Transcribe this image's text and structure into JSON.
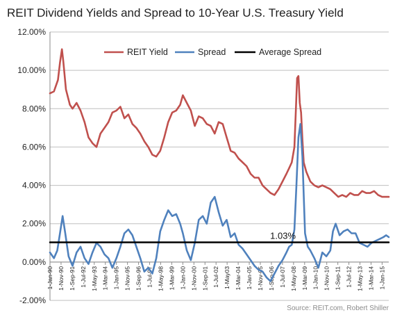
{
  "chart_data": {
    "type": "line",
    "title": "REIT Dividend Yields and Spread to 10-Year U.S. Treasury Yield",
    "source": "Source: REIT.com, Robert Shiller",
    "xlabel": "",
    "ylabel": "",
    "ylim": [
      -2,
      12
    ],
    "y_ticks": [
      "12.00%",
      "10.00%",
      "8.00%",
      "6.00%",
      "4.00%",
      "2.00%",
      "0.00%",
      "-2.00%"
    ],
    "y_tick_values": [
      12,
      10,
      8,
      6,
      4,
      2,
      0,
      -2
    ],
    "xlim": [
      1990.0,
      2015.5
    ],
    "x_ticks": [
      "1-Jan-90",
      "1-Nov-90",
      "1-Sep-91",
      "1-Jul-92",
      "1-May-93",
      "1-Mar-94",
      "1-Jan-95",
      "1-Nov-95",
      "1-Sep-96",
      "1-Jul-97",
      "1-May-98",
      "1-Mar-99",
      "1-Jan-00",
      "1-Nov-00",
      "1-Sep-01",
      "1-Jul-02",
      "1-May03",
      "1-Mar-04",
      "1-Jan-05",
      "1-Nov-05",
      "1-Sep-06",
      "1-Jul-07",
      "1-May-08",
      "1-Mar-09",
      "1-Jan-10",
      "1-Nov-10",
      "1-Sep-11",
      "1-Jul-12",
      "1-May-13",
      "1-Mar-14",
      "1-Jan-15"
    ],
    "x_tick_values": [
      1990.0,
      1990.833,
      1991.667,
      1992.5,
      1993.333,
      1994.167,
      1995.0,
      1995.833,
      1996.667,
      1997.5,
      1998.333,
      1999.167,
      2000.0,
      2000.833,
      2001.667,
      2002.5,
      2003.333,
      2004.167,
      2005.0,
      2005.833,
      2006.667,
      2007.5,
      2008.333,
      2009.167,
      2010.0,
      2010.833,
      2011.667,
      2012.5,
      2013.333,
      2014.167,
      2015.0
    ],
    "grid": "horizontal",
    "legend": "top-right",
    "annotation": {
      "text": "1.03%",
      "x": 2007.2,
      "y": 1.03
    },
    "series": [
      {
        "name": "REIT Yield",
        "color": "#c0504d",
        "x": [
          1990.0,
          1990.3,
          1990.6,
          1990.75,
          1990.9,
          1991.0,
          1991.2,
          1991.5,
          1991.7,
          1992.0,
          1992.3,
          1992.6,
          1992.9,
          1993.2,
          1993.5,
          1993.8,
          1994.1,
          1994.4,
          1994.7,
          1995.0,
          1995.3,
          1995.6,
          1995.9,
          1996.2,
          1996.5,
          1996.8,
          1997.1,
          1997.4,
          1997.7,
          1998.0,
          1998.3,
          1998.6,
          1998.9,
          1999.2,
          1999.5,
          1999.8,
          2000.0,
          2000.3,
          2000.6,
          2000.9,
          2001.2,
          2001.5,
          2001.8,
          2002.1,
          2002.4,
          2002.7,
          2003.0,
          2003.3,
          2003.6,
          2003.9,
          2004.2,
          2004.5,
          2004.8,
          2005.1,
          2005.4,
          2005.7,
          2006.0,
          2006.3,
          2006.6,
          2006.9,
          2007.2,
          2007.5,
          2007.8,
          2008.0,
          2008.2,
          2008.4,
          2008.6,
          2008.7,
          2008.8,
          2008.9,
          2009.0,
          2009.1,
          2009.3,
          2009.6,
          2009.9,
          2010.2,
          2010.5,
          2010.8,
          2011.1,
          2011.4,
          2011.7,
          2012.0,
          2012.3,
          2012.6,
          2012.9,
          2013.2,
          2013.5,
          2013.8,
          2014.1,
          2014.4,
          2014.7,
          2015.0,
          2015.3,
          2015.5
        ],
        "y": [
          8.8,
          8.9,
          9.5,
          10.4,
          11.1,
          10.5,
          9.0,
          8.2,
          8.0,
          8.3,
          7.9,
          7.3,
          6.5,
          6.2,
          6.0,
          6.7,
          7.0,
          7.3,
          7.8,
          7.9,
          8.1,
          7.5,
          7.7,
          7.2,
          7.0,
          6.7,
          6.3,
          6.0,
          5.6,
          5.5,
          5.8,
          6.5,
          7.3,
          7.8,
          7.9,
          8.2,
          8.7,
          8.3,
          7.9,
          7.1,
          7.6,
          7.5,
          7.2,
          7.1,
          6.7,
          7.3,
          7.2,
          6.5,
          5.8,
          5.7,
          5.4,
          5.2,
          5.0,
          4.6,
          4.4,
          4.4,
          4.0,
          3.8,
          3.6,
          3.5,
          3.8,
          4.2,
          4.6,
          4.9,
          5.2,
          6.0,
          9.6,
          9.7,
          8.3,
          7.8,
          6.4,
          5.2,
          4.7,
          4.2,
          4.0,
          3.9,
          4.0,
          3.9,
          3.8,
          3.6,
          3.4,
          3.5,
          3.4,
          3.6,
          3.5,
          3.5,
          3.7,
          3.6,
          3.6,
          3.7,
          3.5,
          3.4,
          3.4,
          3.4
        ]
      },
      {
        "name": "Spread",
        "color": "#4f81bd",
        "x": [
          1990.0,
          1990.3,
          1990.55,
          1990.75,
          1990.95,
          1991.15,
          1991.4,
          1991.7,
          1992.0,
          1992.3,
          1992.6,
          1992.9,
          1993.2,
          1993.5,
          1993.8,
          1994.1,
          1994.4,
          1994.7,
          1995.0,
          1995.3,
          1995.6,
          1995.9,
          1996.2,
          1996.5,
          1996.8,
          1997.1,
          1997.4,
          1997.7,
          1998.0,
          1998.3,
          1998.6,
          1998.9,
          1999.2,
          1999.5,
          1999.8,
          2000.0,
          2000.3,
          2000.6,
          2000.9,
          2001.2,
          2001.5,
          2001.8,
          2002.1,
          2002.4,
          2002.7,
          2003.0,
          2003.3,
          2003.6,
          2003.9,
          2004.2,
          2004.5,
          2004.8,
          2005.1,
          2005.4,
          2005.7,
          2006.0,
          2006.3,
          2006.6,
          2006.9,
          2007.2,
          2007.5,
          2007.8,
          2008.0,
          2008.2,
          2008.4,
          2008.55,
          2008.7,
          2008.85,
          2009.0,
          2009.2,
          2009.4,
          2009.6,
          2009.9,
          2010.2,
          2010.5,
          2010.8,
          2011.1,
          2011.3,
          2011.5,
          2011.8,
          2012.1,
          2012.4,
          2012.7,
          2013.0,
          2013.3,
          2013.6,
          2013.9,
          2014.2,
          2014.5,
          2014.8,
          2015.1,
          2015.3,
          2015.5
        ],
        "y": [
          0.5,
          0.2,
          0.6,
          1.5,
          2.4,
          1.5,
          0.3,
          -0.2,
          0.5,
          0.8,
          0.2,
          -0.1,
          0.5,
          1.0,
          0.8,
          0.4,
          0.2,
          -0.3,
          0.2,
          0.8,
          1.5,
          1.7,
          1.4,
          0.8,
          0.2,
          -0.5,
          -0.3,
          -0.6,
          0.2,
          1.6,
          2.2,
          2.7,
          2.4,
          2.5,
          2.0,
          1.5,
          0.6,
          0.1,
          1.0,
          2.2,
          2.4,
          2.0,
          3.1,
          3.4,
          2.6,
          1.9,
          2.2,
          1.3,
          1.5,
          0.9,
          0.7,
          0.4,
          0.1,
          -0.2,
          -0.4,
          -0.5,
          -0.8,
          -1.0,
          -0.6,
          -0.2,
          0.1,
          0.5,
          0.8,
          0.9,
          1.7,
          4.0,
          6.5,
          7.2,
          5.5,
          1.5,
          0.8,
          0.6,
          0.2,
          -0.3,
          0.5,
          0.3,
          0.6,
          1.6,
          2.0,
          1.4,
          1.6,
          1.7,
          1.5,
          1.5,
          1.0,
          0.9,
          0.8,
          1.0,
          1.1,
          1.2,
          1.3,
          1.4,
          1.3
        ]
      },
      {
        "name": "Average Spread",
        "color": "#000000",
        "x": [
          1990.0,
          2015.5
        ],
        "y": [
          1.03,
          1.03
        ]
      }
    ]
  }
}
